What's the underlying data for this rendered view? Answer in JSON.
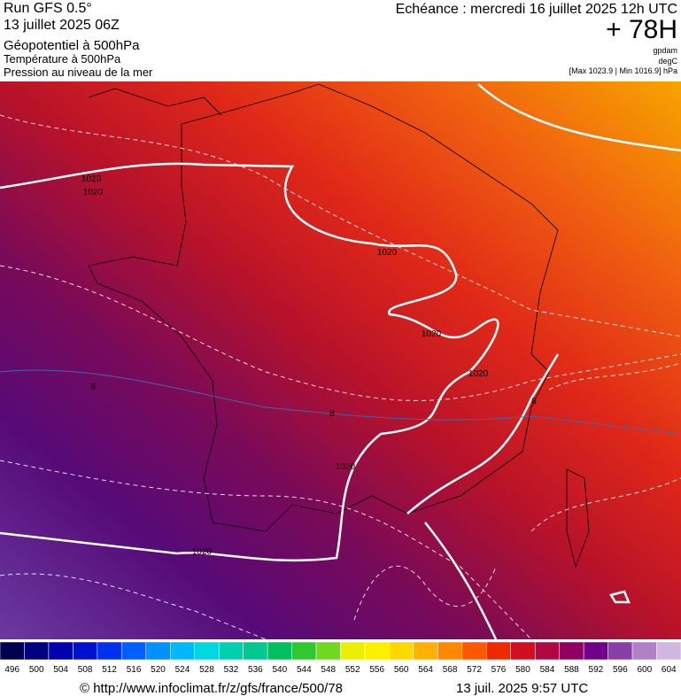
{
  "header": {
    "run": "Run GFS 0.5°",
    "date": "13 juillet 2025 06Z",
    "field1": "Géopotentiel à 500hPa",
    "field2": "Température à 500hPa",
    "field3": "Pression au niveau de la mer",
    "valid": "Echéance : mercredi 16 juillet 2025 12h UTC",
    "lead": "+ 78H",
    "unit1": "gpdam",
    "unit2": "degC",
    "range": "[Max 1023.9 | Min 1016.9] hPa"
  },
  "contour_labels": [
    "1020",
    "1020",
    "1020",
    "1020",
    "1020",
    "1020",
    "1020",
    "8",
    "8",
    "8"
  ],
  "colorbar": {
    "labels": [
      496,
      500,
      504,
      508,
      512,
      516,
      520,
      524,
      528,
      532,
      536,
      540,
      544,
      548,
      552,
      556,
      560,
      564,
      568,
      572,
      576,
      580,
      584,
      588,
      592,
      596,
      600,
      604
    ]
  },
  "footer": {
    "source": "© http://www.infoclimat.fr/z/gfs/france/500/78",
    "time": "13 juil. 2025  9:57 UTC"
  }
}
